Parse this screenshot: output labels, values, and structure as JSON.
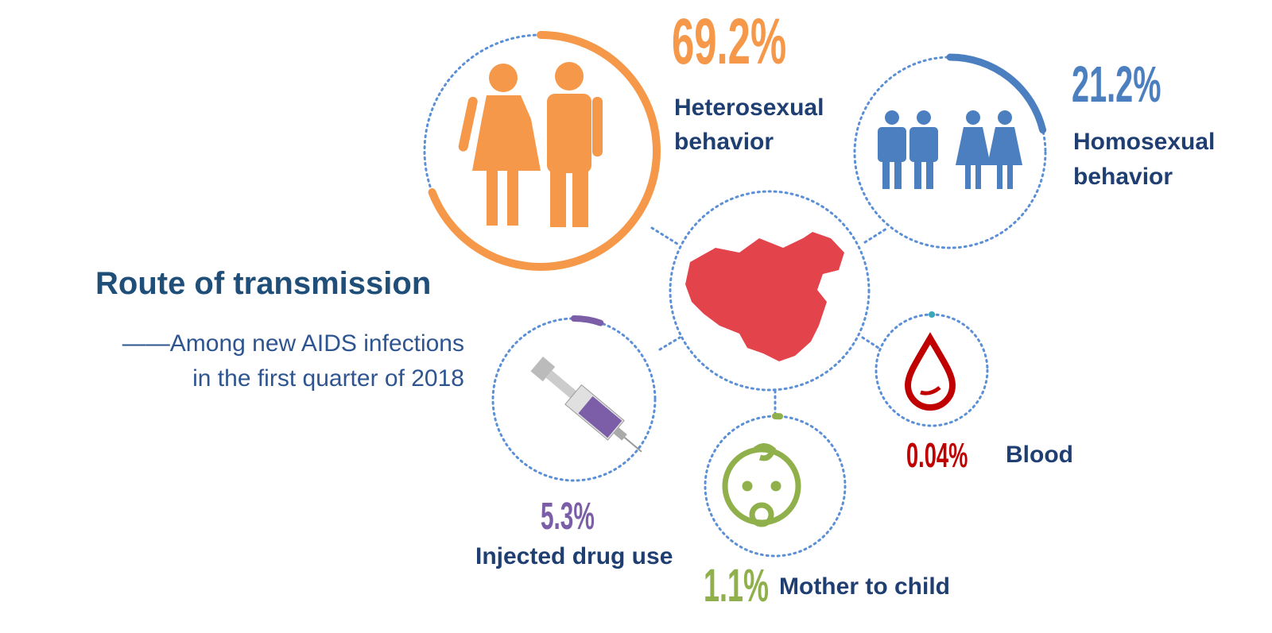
{
  "title": "Route of transmission",
  "subtitle_lines": [
    "——Among new AIDS infections",
    "in the first quarter of 2018"
  ],
  "routes": [
    {
      "name_lines": [
        "Heterosexual",
        "behavior"
      ],
      "value": 69.2,
      "value_label": "69.2%",
      "color": "#f5984a"
    },
    {
      "name_lines": [
        "Homosexual",
        "behavior"
      ],
      "value": 21.2,
      "value_label": "21.2%",
      "color": "#4b7fc0"
    },
    {
      "name_lines": [
        "Injected drug use"
      ],
      "value": 5.3,
      "value_label": "5.3%",
      "color": "#7b5ea7"
    },
    {
      "name_lines": [
        "Mother to child"
      ],
      "value": 1.1,
      "value_label": "1.1%",
      "color": "#8fb04a"
    },
    {
      "name_lines": [
        "Blood"
      ],
      "value": 0.04,
      "value_label": "0.04%",
      "color": "#c00000"
    }
  ]
}
